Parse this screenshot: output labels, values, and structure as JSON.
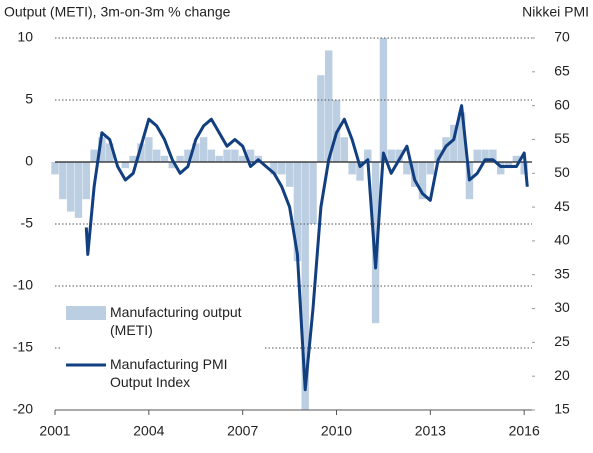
{
  "chart_data": {
    "type": "bar+line",
    "left_axis_label": "Output (METI), 3m-on-3m % change",
    "right_axis_label": "Nikkei PMI",
    "xlim": [
      2001,
      2016.25
    ],
    "xticks": [
      2001,
      2004,
      2007,
      2010,
      2013,
      2016
    ],
    "ylim": [
      -20,
      10
    ],
    "yticks": [
      -20,
      -15,
      -10,
      -5,
      0,
      5,
      10
    ],
    "y2lim": [
      15,
      70
    ],
    "y2ticks": [
      15,
      20,
      25,
      30,
      35,
      40,
      45,
      50,
      55,
      60,
      65,
      70
    ],
    "grid": true,
    "legend": "lower left",
    "series": [
      {
        "name": "Manufacturing output (METI)",
        "type": "bar",
        "color": "#bccfe2",
        "x": [
          2001,
          2001.25,
          2001.5,
          2001.75,
          2002,
          2002.25,
          2002.5,
          2002.75,
          2003,
          2003.25,
          2003.5,
          2003.75,
          2004,
          2004.25,
          2004.5,
          2004.75,
          2005,
          2005.25,
          2005.5,
          2005.75,
          2006,
          2006.25,
          2006.5,
          2006.75,
          2007,
          2007.25,
          2007.5,
          2007.75,
          2008,
          2008.25,
          2008.5,
          2008.75,
          2009,
          2009.25,
          2009.5,
          2009.75,
          2010,
          2010.25,
          2010.5,
          2010.75,
          2011,
          2011.25,
          2011.5,
          2011.75,
          2012,
          2012.25,
          2012.5,
          2012.75,
          2013,
          2013.25,
          2013.5,
          2013.75,
          2014,
          2014.25,
          2014.5,
          2014.75,
          2015,
          2015.25,
          2015.5,
          2015.75,
          2016
        ],
        "values": [
          -1,
          -3,
          -4,
          -4.5,
          -3,
          1,
          2,
          1.5,
          0,
          -0.5,
          0.5,
          1.5,
          2,
          1,
          0.5,
          -0.5,
          0.5,
          1,
          1.5,
          2,
          1,
          0.5,
          1,
          1,
          0.5,
          1,
          0.5,
          0,
          -1,
          -1,
          -2,
          -8,
          -20,
          -5,
          7,
          9,
          5,
          2,
          -1,
          -1.5,
          1,
          -13,
          10,
          1,
          1,
          -1,
          -2,
          -3,
          -1,
          1,
          2,
          3,
          4,
          -3,
          1,
          1,
          1,
          -1,
          -0.5,
          0.5,
          -1
        ]
      },
      {
        "name": "Manufacturing PMI Output Index",
        "type": "line",
        "axis": "y2",
        "color": "#123f80",
        "x": [
          2002,
          2002.05,
          2002.25,
          2002.5,
          2002.75,
          2003,
          2003.25,
          2003.5,
          2003.75,
          2004,
          2004.25,
          2004.5,
          2004.75,
          2005,
          2005.25,
          2005.5,
          2005.75,
          2006,
          2006.25,
          2006.5,
          2006.75,
          2007,
          2007.25,
          2007.5,
          2007.75,
          2008,
          2008.25,
          2008.5,
          2008.75,
          2009,
          2009.25,
          2009.5,
          2009.75,
          2010,
          2010.25,
          2010.5,
          2010.75,
          2011,
          2011.25,
          2011.5,
          2011.75,
          2012,
          2012.25,
          2012.5,
          2012.75,
          2013,
          2013.25,
          2013.5,
          2013.75,
          2014,
          2014.25,
          2014.5,
          2014.75,
          2015,
          2015.25,
          2015.5,
          2015.75,
          2016,
          2016.1
        ],
        "values": [
          42,
          38,
          48,
          56,
          55,
          51,
          49,
          50,
          54,
          58,
          57,
          55,
          52,
          50,
          51,
          55,
          57,
          58,
          56,
          54,
          55,
          54,
          51,
          52,
          51,
          50,
          48,
          45,
          38,
          18,
          30,
          45,
          52,
          56,
          58,
          55,
          51,
          52,
          36,
          53,
          50,
          52,
          54,
          49,
          47,
          46,
          52,
          54,
          55,
          60,
          49,
          50,
          52,
          52,
          51,
          51,
          51,
          53,
          48
        ]
      }
    ]
  }
}
